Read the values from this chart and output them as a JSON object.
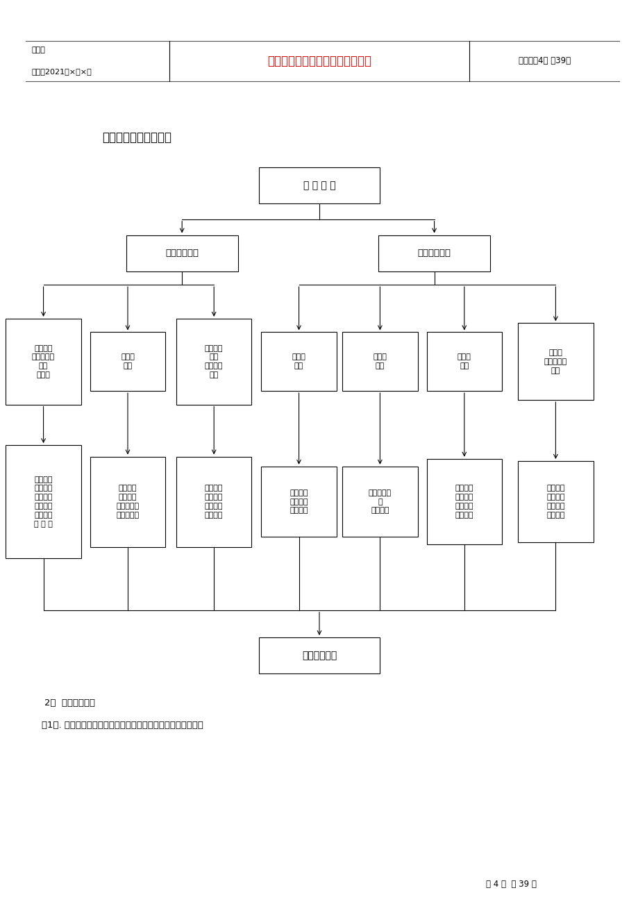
{
  "page_width": 9.2,
  "page_height": 13.02,
  "bg_color": "#ffffff",
  "header": {
    "line1_left": "编号：",
    "line2_left": "时间：2021年×月×日",
    "center_text": "书山有路勤为径，学海无涯苦作舟",
    "center_color": "#cc0000",
    "right_text": "页码：第4页 共39页"
  },
  "title": "项目工程部施工网络图",
  "level1_label": "项 目 经 理",
  "level2_left_label": "项目技术负责",
  "level2_right_label": "项目施工负责",
  "level3_labels": [
    "计划预算\n员、内业技\n术员\n各１人",
    "质量员\n２人",
    "土建施工\n５人\n安装施工\n３人",
    "材料员\n２人",
    "设备员\n２人",
    "安全员\n２人",
    "劳工员\n（兼后勤）\n１人"
  ],
  "level4_labels": [
    "技术管理\n文件管理\n档案管理\n生产计划\n材料计划\n预 决 算",
    "质量监督\n检查验收\n原材料试验\n及结构试验",
    "组织施工\n质量安全\n定位放线\n轴线控制",
    "材料供应\n验收管理\n平面管理",
    "设备供应管\n理\n维护保养",
    "安全监督\n安全检查\n安全验收\n文明施工",
    "劳务管理\n食堂管理\n现场卫生\n保卫管理"
  ],
  "level5_label": "施工操作班组",
  "section2_title": "2、  施工生产安排",
  "section2_text": "（1）. 基础、主体部分、屋面及防水由项目部承担施工，砂浆、",
  "footer_text": "第 4 页  共 39 页"
}
